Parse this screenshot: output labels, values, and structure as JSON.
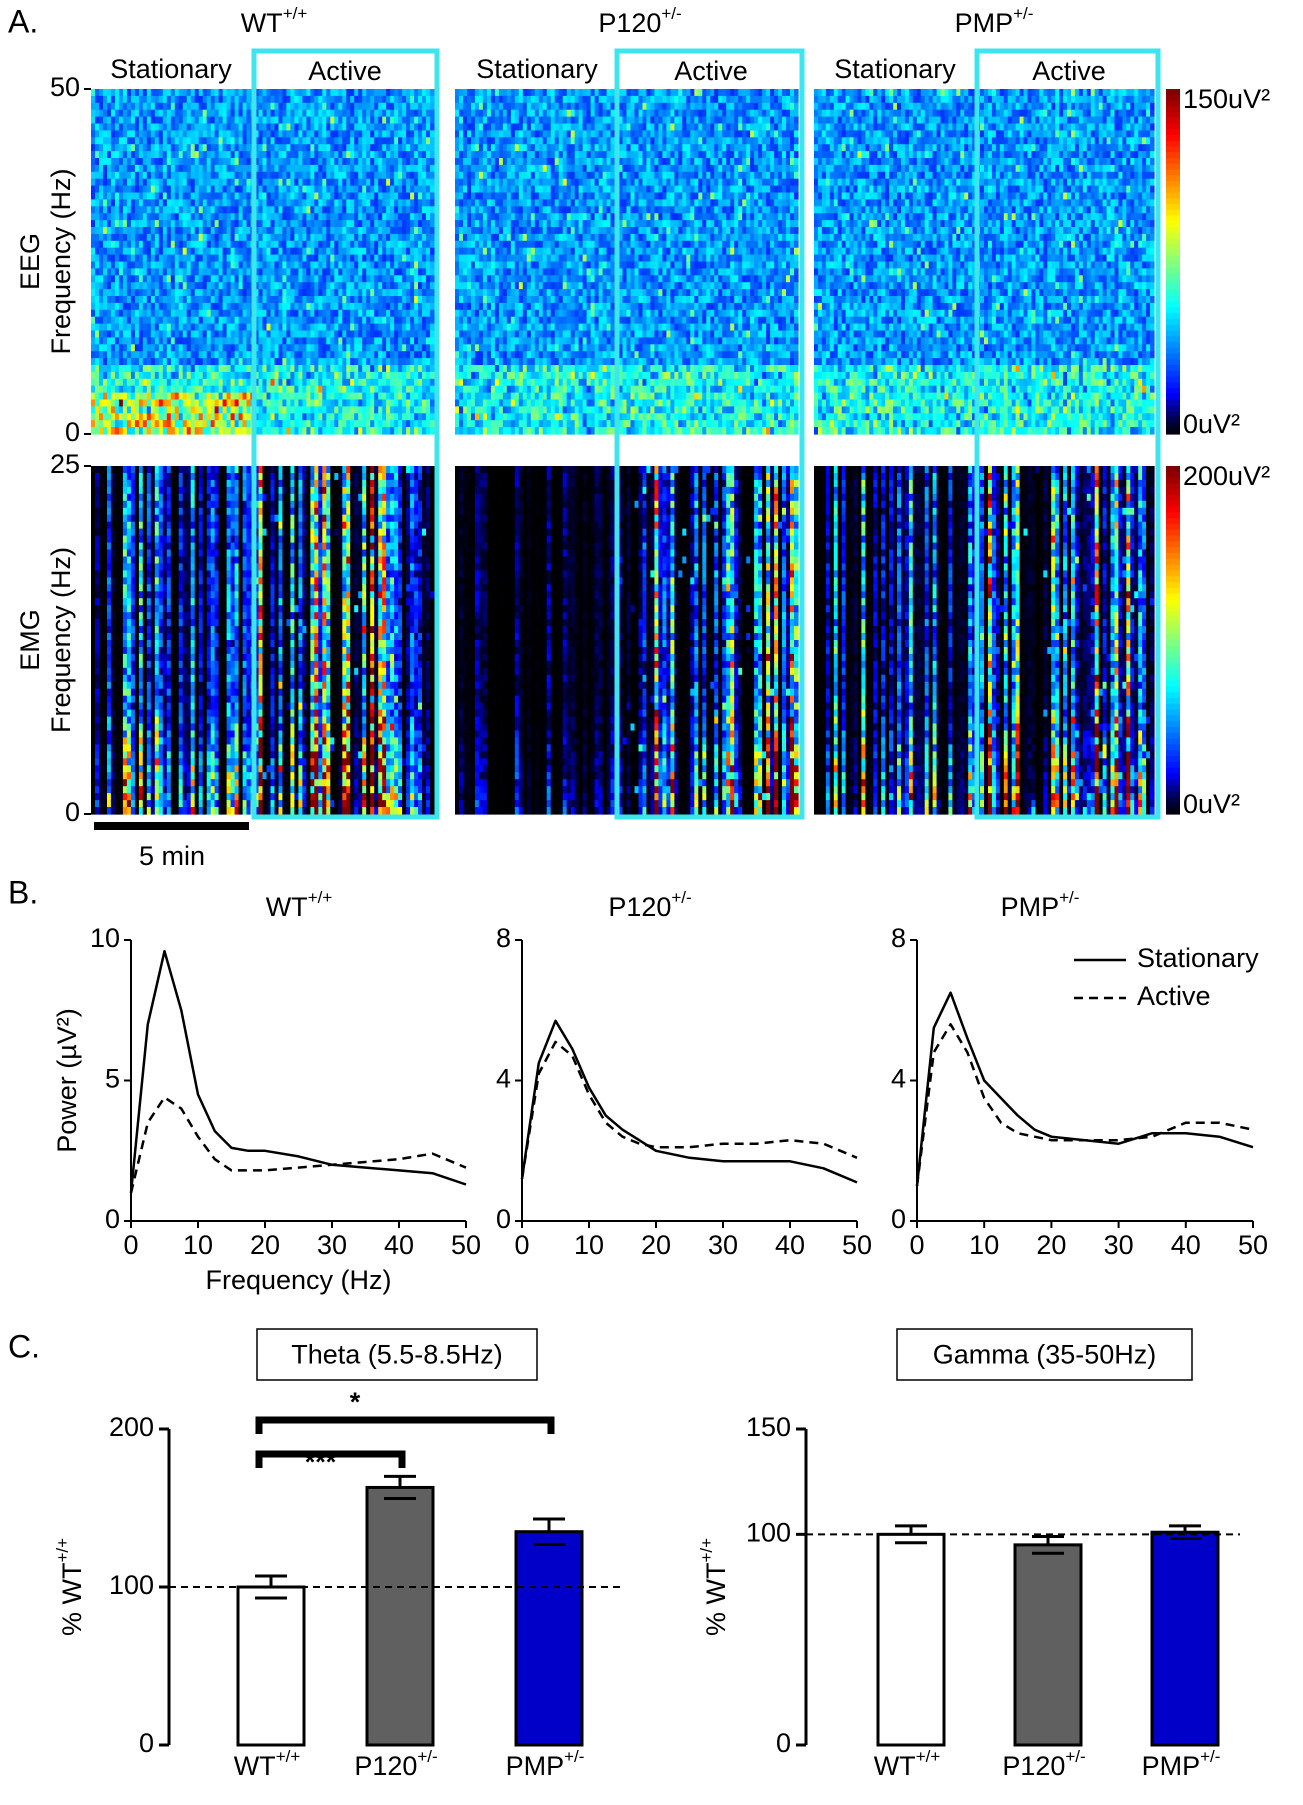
{
  "panel_labels": [
    "A.",
    "B.",
    "C."
  ],
  "spectrograms": {
    "genotypes": [
      {
        "name": "WT",
        "sup": "+/+"
      },
      {
        "name": "P120",
        "sup": "+/-"
      },
      {
        "name": "PMP",
        "sup": "+/-"
      }
    ],
    "conditions": [
      "Stationary",
      "Active"
    ],
    "scale_bar": "5 min",
    "eeg": {
      "ylabel": [
        "EEG",
        "Frequency (Hz)"
      ],
      "ylim": [
        0,
        50
      ],
      "yticks": [
        0,
        50
      ],
      "clim": [
        0,
        150
      ],
      "cticks": [
        {
          "value": 0,
          "label": "0uV²"
        },
        {
          "value": 150,
          "label": "150uV²"
        }
      ]
    },
    "emg": {
      "ylabel": [
        "EMG",
        "Frequency (Hz)"
      ],
      "ylim": [
        0,
        25
      ],
      "yticks": [
        0,
        25
      ],
      "clim": [
        0,
        200
      ],
      "cticks": [
        {
          "value": 0,
          "label": "0uV²"
        },
        {
          "value": 200,
          "label": "200uV²"
        }
      ]
    }
  },
  "chart_data": [
    {
      "type": "line",
      "title": {
        "name": "WT",
        "sup": "+/+"
      },
      "xlabel": "Frequency (Hz)",
      "ylabel": "Power (µV²)",
      "x": [
        0,
        2.5,
        5,
        7.5,
        10,
        12.5,
        15,
        17.5,
        20,
        25,
        30,
        35,
        40,
        45,
        50
      ],
      "xlim": [
        0,
        50
      ],
      "xticks": [
        0,
        10,
        20,
        30,
        40,
        50
      ],
      "ylim": [
        0,
        10
      ],
      "yticks": [
        0,
        5,
        10
      ],
      "series": [
        {
          "color": "#000000",
          "dashed": false,
          "values": [
            1.0,
            7.0,
            9.6,
            7.5,
            4.5,
            3.2,
            2.6,
            2.5,
            2.5,
            2.3,
            2.0,
            1.9,
            1.8,
            1.7,
            1.3
          ]
        },
        {
          "color": "#000000",
          "dashed": true,
          "values": [
            1.0,
            3.5,
            4.4,
            4.0,
            3.0,
            2.2,
            1.8,
            1.8,
            1.8,
            1.9,
            2.0,
            2.1,
            2.2,
            2.4,
            1.9
          ]
        }
      ]
    },
    {
      "type": "line",
      "title": {
        "name": "P120",
        "sup": "+/-"
      },
      "x": [
        0,
        2.5,
        5,
        7.5,
        10,
        12.5,
        15,
        17.5,
        20,
        25,
        30,
        35,
        40,
        45,
        50
      ],
      "xlim": [
        0,
        50
      ],
      "xticks": [
        0,
        10,
        20,
        30,
        40,
        50
      ],
      "ylim": [
        0,
        8
      ],
      "yticks": [
        0,
        4,
        8
      ],
      "series": [
        {
          "color": "#000000",
          "dashed": false,
          "values": [
            1.2,
            4.5,
            5.7,
            4.9,
            3.8,
            3.0,
            2.6,
            2.3,
            2.0,
            1.8,
            1.7,
            1.7,
            1.7,
            1.5,
            1.1
          ]
        },
        {
          "color": "#000000",
          "dashed": true,
          "values": [
            1.2,
            4.2,
            5.1,
            4.7,
            3.6,
            2.8,
            2.4,
            2.2,
            2.1,
            2.1,
            2.2,
            2.2,
            2.3,
            2.2,
            1.8
          ]
        }
      ]
    },
    {
      "type": "line",
      "title": {
        "name": "PMP",
        "sup": "+/-"
      },
      "legend": "upper right",
      "x": [
        0,
        2.5,
        5,
        7.5,
        10,
        12.5,
        15,
        17.5,
        20,
        25,
        30,
        35,
        40,
        45,
        50
      ],
      "xlim": [
        0,
        50
      ],
      "xticks": [
        0,
        10,
        20,
        30,
        40,
        50
      ],
      "ylim": [
        0,
        8
      ],
      "yticks": [
        0,
        4,
        8
      ],
      "series": [
        {
          "name": "Stationary",
          "color": "#000000",
          "dashed": false,
          "values": [
            1.0,
            5.5,
            6.5,
            5.2,
            4.0,
            3.5,
            3.0,
            2.6,
            2.4,
            2.3,
            2.2,
            2.5,
            2.5,
            2.4,
            2.1
          ]
        },
        {
          "name": "Active",
          "color": "#000000",
          "dashed": true,
          "values": [
            1.0,
            4.8,
            5.6,
            4.8,
            3.5,
            2.8,
            2.5,
            2.4,
            2.3,
            2.3,
            2.3,
            2.4,
            2.8,
            2.8,
            2.6
          ]
        }
      ]
    },
    {
      "type": "bar",
      "title": "Theta (5.5-8.5Hz)",
      "ylabel": {
        "name": "% WT",
        "sup": "+/+"
      },
      "categories": [
        {
          "name": "WT",
          "sup": "+/+"
        },
        {
          "name": "P120",
          "sup": "+/-"
        },
        {
          "name": "PMP",
          "sup": "+/-"
        }
      ],
      "values": [
        100,
        163,
        135
      ],
      "errors": [
        7,
        7,
        8
      ],
      "colors": [
        "#ffffff",
        "#606060",
        "#0000c8"
      ],
      "ylim": [
        0,
        200
      ],
      "yticks": [
        0,
        100,
        200
      ],
      "reference_line": 100,
      "annotations": [
        {
          "text": "***",
          "from": 0,
          "to": 1
        },
        {
          "text": "*",
          "from": 0,
          "to": 2
        }
      ]
    },
    {
      "type": "bar",
      "title": "Gamma (35-50Hz)",
      "ylabel": {
        "name": "% WT",
        "sup": "+/+"
      },
      "categories": [
        {
          "name": "WT",
          "sup": "+/+"
        },
        {
          "name": "P120",
          "sup": "+/-"
        },
        {
          "name": "PMP",
          "sup": "+/-"
        }
      ],
      "values": [
        100,
        95,
        101
      ],
      "errors": [
        4,
        4,
        3
      ],
      "colors": [
        "#ffffff",
        "#606060",
        "#0000c8"
      ],
      "ylim": [
        0,
        150
      ],
      "yticks": [
        0,
        100,
        150
      ],
      "reference_line": 100
    }
  ]
}
